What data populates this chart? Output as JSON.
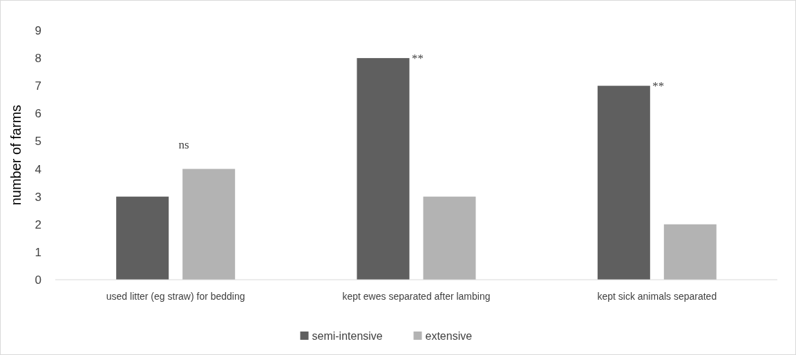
{
  "chart_data": {
    "type": "bar",
    "ylabel": "number of farms",
    "categories": [
      "used litter (eg straw) for bedding",
      "kept ewes separated after lambing",
      "kept sick animals separated"
    ],
    "series": [
      {
        "name": "semi-intensive",
        "color": "#5f5f5f",
        "values": [
          3,
          8,
          7
        ]
      },
      {
        "name": "extensive",
        "color": "#b3b3b3",
        "values": [
          4,
          3,
          2
        ]
      }
    ],
    "ylim": [
      0,
      9
    ],
    "yticks": [
      0,
      1,
      2,
      3,
      4,
      5,
      6,
      7,
      8,
      9
    ],
    "grid": false,
    "legend": "bottom",
    "annotations": [
      "ns",
      "**",
      "**"
    ]
  }
}
